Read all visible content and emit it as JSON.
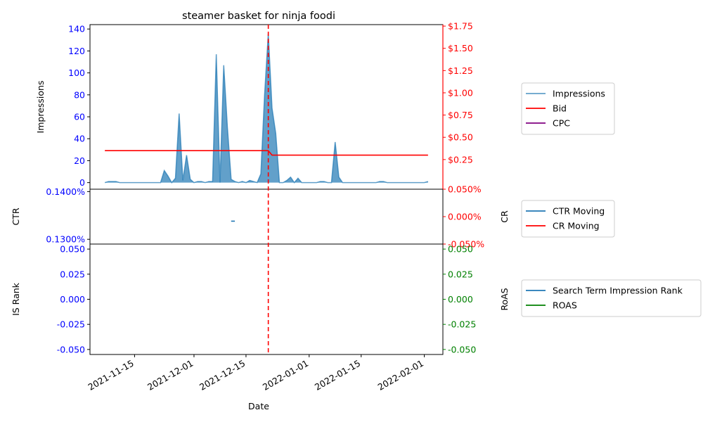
{
  "chart_data": [
    {
      "type": "area",
      "title": "steamer basket for ninja foodi",
      "xlabel": "",
      "ylabel": "Impressions",
      "y2label": "",
      "ylim": [
        -6,
        144
      ],
      "y2lim": [
        -0.0833,
        1.7666
      ],
      "yticks": [
        "0",
        "20",
        "40",
        "60",
        "80",
        "100",
        "120",
        "140"
      ],
      "y2ticks": [
        "$0.25",
        "$0.50",
        "$0.75",
        "$1.00",
        "$1.25",
        "$1.50",
        "$1.75"
      ],
      "impressions": {
        "name": "Impressions",
        "color": "#1f77b4",
        "x": [
          "2021-11-07",
          "2021-11-08",
          "2021-11-09",
          "2021-11-10",
          "2021-11-11",
          "2021-11-12",
          "2021-11-13",
          "2021-11-14",
          "2021-11-15",
          "2021-11-16",
          "2021-11-17",
          "2021-11-18",
          "2021-11-19",
          "2021-11-20",
          "2021-11-21",
          "2021-11-22",
          "2021-11-23",
          "2021-11-24",
          "2021-11-25",
          "2021-11-26",
          "2021-11-27",
          "2021-11-28",
          "2021-11-29",
          "2021-11-30",
          "2021-12-01",
          "2021-12-02",
          "2021-12-03",
          "2021-12-04",
          "2021-12-05",
          "2021-12-06",
          "2021-12-07",
          "2021-12-08",
          "2021-12-09",
          "2021-12-10",
          "2021-12-11",
          "2021-12-12",
          "2021-12-13",
          "2021-12-14",
          "2021-12-15",
          "2021-12-16",
          "2021-12-17",
          "2021-12-18",
          "2021-12-19",
          "2021-12-20",
          "2021-12-21",
          "2021-12-22",
          "2021-12-23",
          "2021-12-24",
          "2021-12-25",
          "2021-12-26",
          "2021-12-27",
          "2021-12-28",
          "2021-12-29",
          "2021-12-30",
          "2021-12-31",
          "2022-01-01",
          "2022-01-02",
          "2022-01-03",
          "2022-01-04",
          "2022-01-05",
          "2022-01-06",
          "2022-01-07",
          "2022-01-08",
          "2022-01-09",
          "2022-01-10",
          "2022-01-11",
          "2022-01-12",
          "2022-01-13",
          "2022-01-14",
          "2022-01-15",
          "2022-01-16",
          "2022-01-17",
          "2022-01-18",
          "2022-01-19",
          "2022-01-20",
          "2022-01-21",
          "2022-01-22",
          "2022-01-23",
          "2022-01-24",
          "2022-01-25",
          "2022-01-26",
          "2022-01-27",
          "2022-01-28",
          "2022-01-29",
          "2022-01-30",
          "2022-01-31",
          "2022-02-01",
          "2022-02-02"
        ],
        "values": [
          0,
          1,
          1,
          1,
          0,
          0,
          0,
          0,
          0,
          0,
          0,
          0,
          0,
          0,
          0,
          0,
          11,
          6,
          0,
          4,
          63,
          2,
          25,
          3,
          0,
          1,
          1,
          0,
          1,
          1,
          117,
          0,
          107,
          50,
          3,
          1,
          0,
          1,
          0,
          2,
          1,
          0,
          8,
          80,
          136,
          68,
          45,
          0,
          0,
          2,
          5,
          0,
          4,
          0,
          0,
          0,
          0,
          0,
          1,
          1,
          0,
          0,
          37,
          5,
          0,
          0,
          0,
          0,
          0,
          0,
          0,
          0,
          0,
          0,
          1,
          1,
          0,
          0,
          0,
          0,
          0,
          0,
          0,
          0,
          0,
          0,
          0,
          1
        ]
      },
      "bid": {
        "name": "Bid",
        "color": "#ff0000",
        "x": [
          "2021-11-07",
          "2021-12-20",
          "2021-12-21",
          "2021-12-22",
          "2022-02-02"
        ],
        "values": [
          0.35,
          0.35,
          0.35,
          0.3,
          0.3
        ]
      },
      "cpc": {
        "name": "CPC",
        "color": "#800080"
      },
      "vline": {
        "x": "2021-12-21",
        "color": "#ff0000"
      }
    },
    {
      "type": "line",
      "ylabel": "CTR",
      "y2label": "CR",
      "ylim": [
        0.129,
        0.1405
      ],
      "y2lim": [
        -0.05,
        0.05
      ],
      "yticks": [
        "0.1300%",
        "0.1400%"
      ],
      "y2ticks": [
        "-0.050%",
        "0.000%",
        "0.050%"
      ],
      "ctr_moving": {
        "name": "CTR Moving",
        "color": "#1f77b4",
        "x": [
          "2021-12-11",
          "2021-12-12"
        ],
        "values": [
          0.1338,
          0.1338
        ]
      },
      "cr_moving": {
        "name": "CR Moving",
        "color": "#ff0000"
      }
    },
    {
      "type": "line",
      "xlabel": "Date",
      "ylabel": "IS Rank",
      "y2label": "RoAS",
      "ylim": [
        -0.055,
        0.055
      ],
      "y2lim": [
        -0.055,
        0.055
      ],
      "yticks": [
        "-0.050",
        "-0.025",
        "0.000",
        "0.025",
        "0.050"
      ],
      "y2ticks": [
        "-0.050",
        "-0.025",
        "0.000",
        "0.025",
        "0.050"
      ],
      "xticks": [
        {
          "date": "2021-11-15",
          "label": "2021-11-15"
        },
        {
          "date": "2021-12-01",
          "label": "2021-12-01"
        },
        {
          "date": "2021-12-15",
          "label": "2021-12-15"
        },
        {
          "date": "2022-01-01",
          "label": "2022-01-01"
        },
        {
          "date": "2022-01-15",
          "label": "2022-01-15"
        },
        {
          "date": "2022-02-01",
          "label": "2022-02-01"
        }
      ],
      "xlim": [
        "2021-11-03",
        "2022-02-06"
      ],
      "search_term_rank": {
        "name": "Search Term Impression Rank",
        "color": "#1f77b4"
      },
      "roas": {
        "name": "ROAS",
        "color": "#008000"
      }
    }
  ]
}
